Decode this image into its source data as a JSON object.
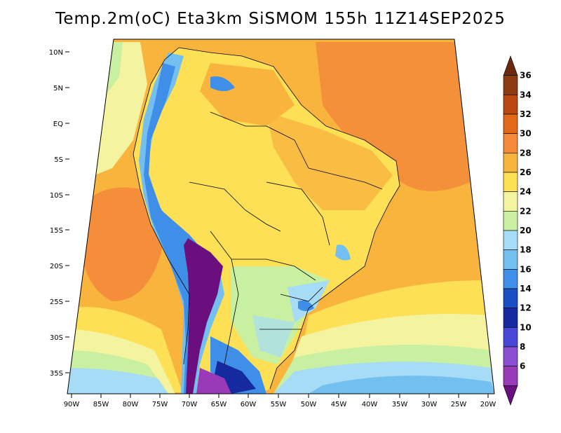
{
  "title": "Temp.2m(oC) Eta3km SiSMOM 155h 11Z14SEP2025",
  "map": {
    "latitude_labels": [
      "10N",
      "5N",
      "EQ",
      "5S",
      "10S",
      "15S",
      "20S",
      "25S",
      "30S",
      "35S"
    ],
    "longitude_labels": [
      "90W",
      "85W",
      "80W",
      "75W",
      "70W",
      "65W",
      "60W",
      "55W",
      "50W",
      "45W",
      "40W",
      "35W",
      "30W",
      "25W",
      "20W"
    ],
    "latitude_range": [
      11,
      -38
    ],
    "longitude_range": [
      -91,
      -19
    ]
  },
  "colorbar": {
    "levels": [
      "36",
      "34",
      "32",
      "30",
      "28",
      "26",
      "24",
      "22",
      "20",
      "18",
      "16",
      "14",
      "12",
      "10",
      "8",
      "6"
    ],
    "colors": [
      "#6b2a10",
      "#8b3a12",
      "#b8480f",
      "#e06a1a",
      "#f48a3a",
      "#f9b43e",
      "#fde055",
      "#f3f3a0",
      "#c8f0a0",
      "#a6dcf5",
      "#72bff0",
      "#3f8ee8",
      "#1a4fc4",
      "#142a9e",
      "#4848d8",
      "#8a4ed0",
      "#9a3ab8",
      "#6b0f7e"
    ]
  }
}
